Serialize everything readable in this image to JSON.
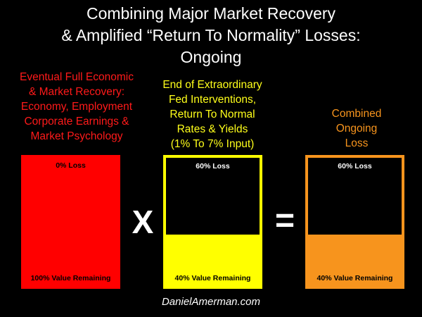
{
  "title": {
    "lines": [
      "Combining Major Market Recovery",
      "& Amplified “Return To Normality” Losses:",
      "Ongoing"
    ]
  },
  "columns": [
    {
      "heading_lines": [
        "Eventual Full Economic",
        "& Market Recovery:",
        "Economy, Employment",
        "Corporate Earnings &",
        "Market Psychology"
      ],
      "color": "#ff1a1a",
      "box": {
        "top_label": "0% Loss",
        "bottom_label": "100% Value Remaining",
        "remaining_fraction": 1.0,
        "fill_color": "#ff0000"
      }
    },
    {
      "heading_lines": [
        "End of Extraordinary",
        "Fed Interventions,",
        "Return To Normal",
        "Rates & Yields",
        "(1% To 7% Input)"
      ],
      "color": "#ffff1a",
      "box": {
        "top_label": "60% Loss",
        "bottom_label": "40% Value Remaining",
        "remaining_fraction": 0.4,
        "fill_color": "#ffff00"
      }
    },
    {
      "heading_lines": [
        "Combined",
        "Ongoing",
        "Loss"
      ],
      "color": "#f7941d",
      "box": {
        "top_label": "60% Loss",
        "bottom_label": "40% Value Remaining",
        "remaining_fraction": 0.4,
        "fill_color": "#f7941d"
      }
    }
  ],
  "operators": {
    "multiply": "X",
    "equals": "="
  },
  "footer": "DanielAmerman.com"
}
